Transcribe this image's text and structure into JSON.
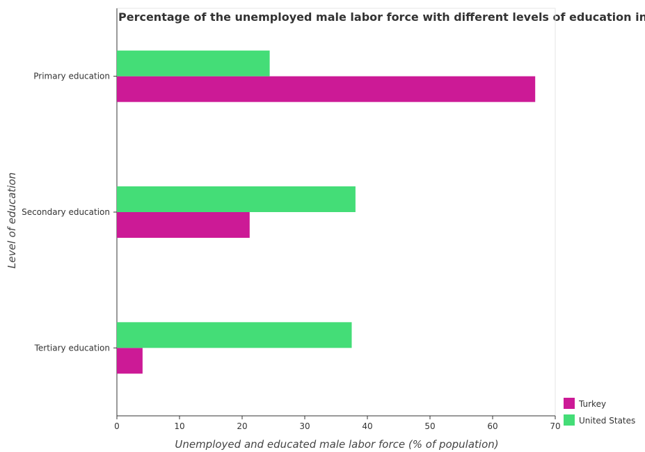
{
  "chart_data": {
    "type": "bar",
    "orientation": "horizontal",
    "title": "Percentage of the unemployed male labor force with different levels of education in countries",
    "xlabel": "Unemployed and educated male labor force (% of population)",
    "ylabel": "Level of education",
    "categories": [
      "Primary education",
      "Secondary education",
      "Tertiary education"
    ],
    "series": [
      {
        "name": "Turkey",
        "color": "#cc1a96",
        "values": [
          66.8,
          21.2,
          4.1
        ]
      },
      {
        "name": "United States",
        "color": "#44dd77",
        "values": [
          24.4,
          38.1,
          37.5
        ]
      }
    ],
    "xlim": [
      0,
      70
    ],
    "xticks": [
      0,
      10,
      20,
      30,
      40,
      50,
      60,
      70
    ],
    "grid": false,
    "legend_position": "bottom-right"
  }
}
